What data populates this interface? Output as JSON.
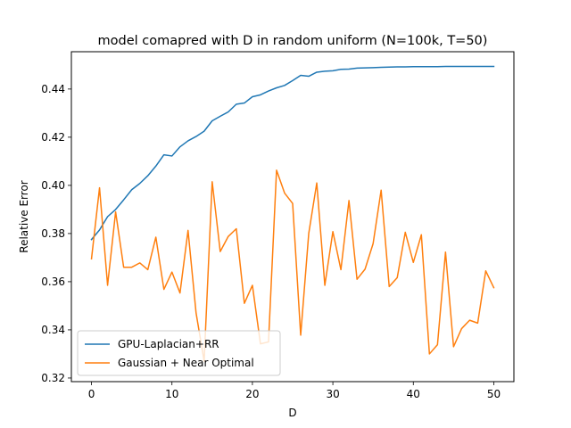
{
  "chart_data": {
    "type": "line",
    "title": "model comapred with D in random uniform (N=100k, T=50)",
    "xlabel": "D",
    "ylabel": "Relative Error",
    "xlim": [
      -2.5,
      52.5
    ],
    "ylim": [
      0.3185,
      0.4555
    ],
    "xticks": [
      0,
      10,
      20,
      30,
      40,
      50
    ],
    "yticks": [
      0.32,
      0.34,
      0.36,
      0.38,
      0.4,
      0.42,
      0.44
    ],
    "ytick_labels": [
      "0.32",
      "0.34",
      "0.36",
      "0.38",
      "0.40",
      "0.42",
      "0.44"
    ],
    "grid": false,
    "legend_position": "lower-left",
    "x": [
      0,
      1,
      2,
      3,
      4,
      5,
      6,
      7,
      8,
      9,
      10,
      11,
      12,
      13,
      14,
      15,
      16,
      17,
      18,
      19,
      20,
      21,
      22,
      23,
      24,
      25,
      26,
      27,
      28,
      29,
      30,
      31,
      32,
      33,
      34,
      35,
      36,
      37,
      38,
      39,
      40,
      41,
      42,
      43,
      44,
      45,
      46,
      47,
      48,
      49,
      50
    ],
    "series": [
      {
        "name": "GPU-Laplacian+RR",
        "color": "#1f77b4",
        "values": [
          0.3775,
          0.3815,
          0.387,
          0.39,
          0.394,
          0.3982,
          0.4008,
          0.404,
          0.408,
          0.4127,
          0.4122,
          0.416,
          0.4185,
          0.4203,
          0.4225,
          0.4268,
          0.4287,
          0.4305,
          0.4337,
          0.4342,
          0.4368,
          0.4376,
          0.4392,
          0.4405,
          0.4415,
          0.4435,
          0.4457,
          0.4453,
          0.447,
          0.4474,
          0.4476,
          0.4482,
          0.4483,
          0.4487,
          0.4488,
          0.4489,
          0.449,
          0.4491,
          0.4492,
          0.4492,
          0.4493,
          0.4493,
          0.4493,
          0.4493,
          0.4494,
          0.4494,
          0.4494,
          0.4494,
          0.4494,
          0.4494,
          0.4494
        ]
      },
      {
        "name": "Gaussian + Near Optimal",
        "color": "#ff7f0e",
        "values": [
          0.3695,
          0.399,
          0.3585,
          0.389,
          0.366,
          0.366,
          0.3678,
          0.365,
          0.3785,
          0.3568,
          0.364,
          0.3553,
          0.3813,
          0.347,
          0.327,
          0.4015,
          0.3725,
          0.3788,
          0.382,
          0.351,
          0.3585,
          0.3342,
          0.335,
          0.4063,
          0.3968,
          0.3925,
          0.3378,
          0.38,
          0.401,
          0.3585,
          0.3808,
          0.365,
          0.3937,
          0.361,
          0.3652,
          0.3758,
          0.398,
          0.358,
          0.3617,
          0.3805,
          0.368,
          0.3795,
          0.33,
          0.3338,
          0.3723,
          0.333,
          0.3405,
          0.344,
          0.3428,
          0.3645,
          0.3575
        ]
      }
    ]
  }
}
